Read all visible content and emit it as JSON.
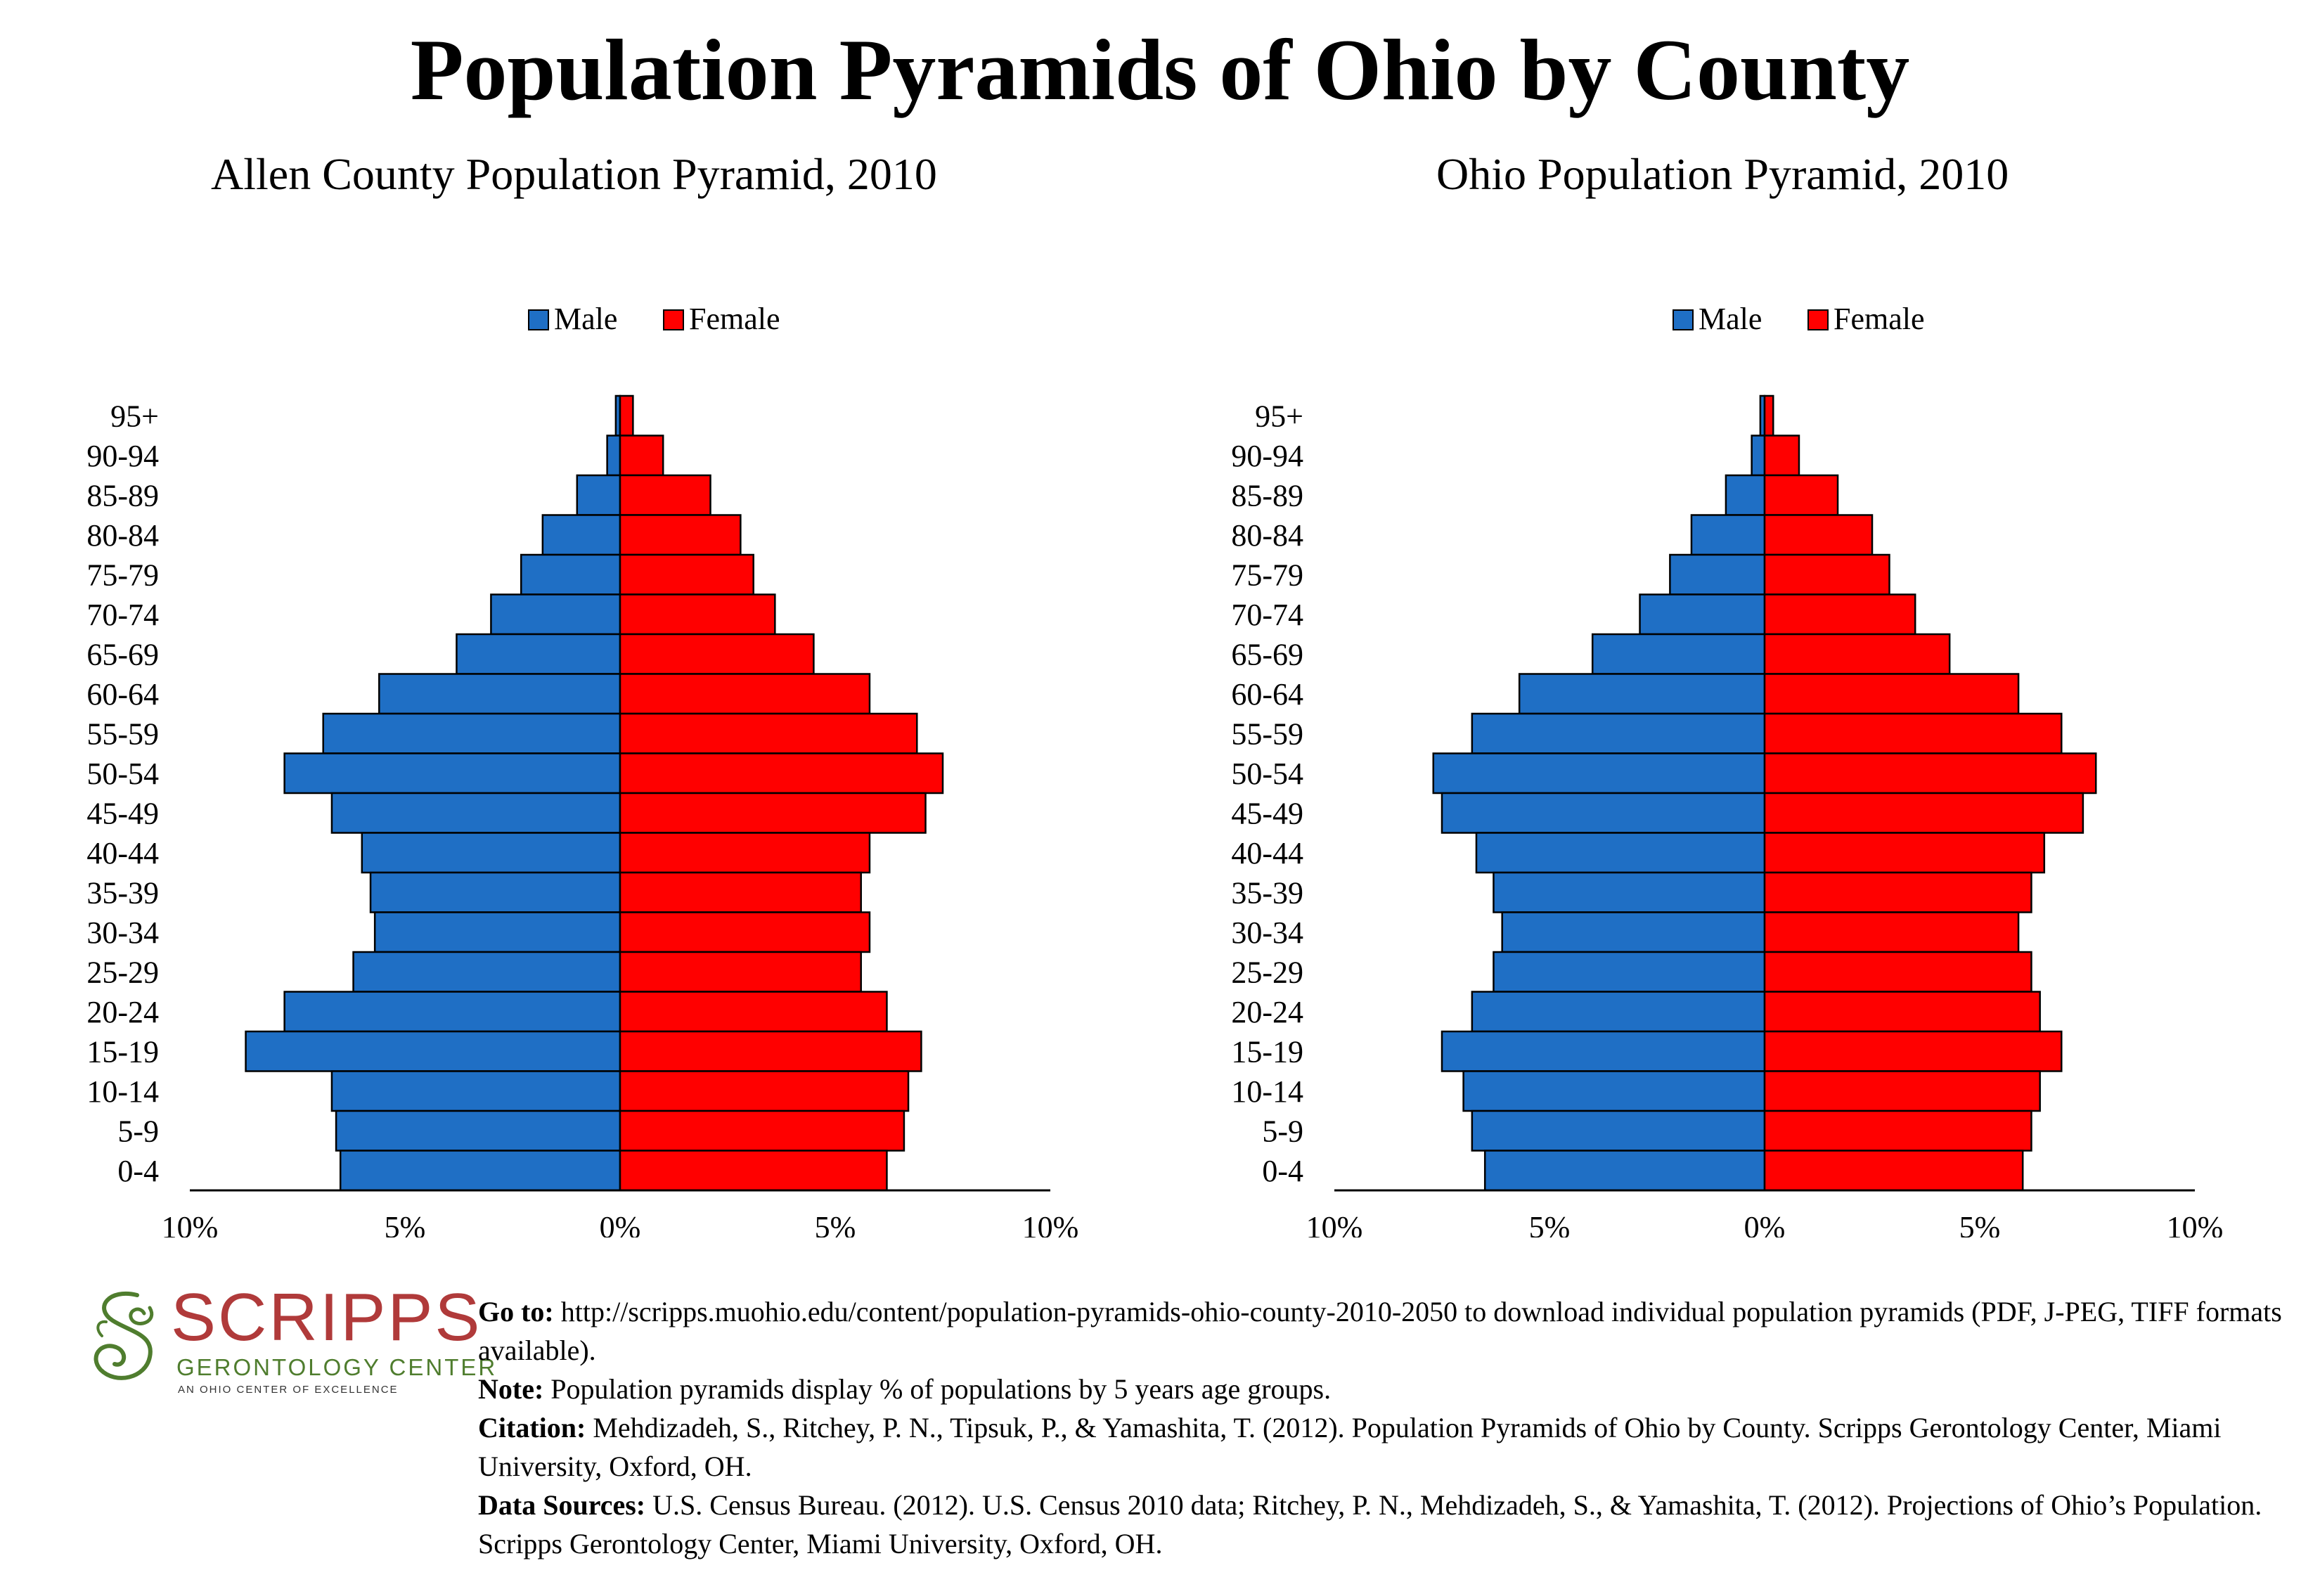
{
  "title": "Population Pyramids of Ohio by County",
  "colors": {
    "male": "#1f6fc5",
    "female": "#ff0000",
    "outline": "#000000",
    "logo_red": "#b03a3a",
    "logo_green": "#4f7d2e"
  },
  "chart_data": [
    {
      "type": "bar",
      "orientation": "horizontal-population-pyramid",
      "title": "Allen County Population Pyramid, 2010",
      "categories": [
        "95+",
        "90-94",
        "85-89",
        "80-84",
        "75-79",
        "70-74",
        "65-69",
        "60-64",
        "55-59",
        "50-54",
        "45-49",
        "40-44",
        "35-39",
        "30-34",
        "25-29",
        "20-24",
        "15-19",
        "10-14",
        "5-9",
        "0-4"
      ],
      "series": [
        {
          "name": "Male",
          "values": [
            0.1,
            0.3,
            1.0,
            1.8,
            2.3,
            3.0,
            3.8,
            5.6,
            6.9,
            7.8,
            6.7,
            6.0,
            5.8,
            5.7,
            6.2,
            7.8,
            8.7,
            6.7,
            6.6,
            6.5
          ]
        },
        {
          "name": "Female",
          "values": [
            0.3,
            1.0,
            2.1,
            2.8,
            3.1,
            3.6,
            4.5,
            5.8,
            6.9,
            7.5,
            7.1,
            5.8,
            5.6,
            5.8,
            5.6,
            6.2,
            7.0,
            6.7,
            6.6,
            6.2
          ]
        }
      ],
      "xlim": [
        -10,
        10
      ],
      "xticks": [
        "10%",
        "5%",
        "0%",
        "5%",
        "10%"
      ],
      "legend": "top-center",
      "grid": false
    },
    {
      "type": "bar",
      "orientation": "horizontal-population-pyramid",
      "title": "Ohio Population Pyramid, 2010",
      "categories": [
        "95+",
        "90-94",
        "85-89",
        "80-84",
        "75-79",
        "70-74",
        "65-69",
        "60-64",
        "55-59",
        "50-54",
        "45-49",
        "40-44",
        "35-39",
        "30-34",
        "25-29",
        "20-24",
        "15-19",
        "10-14",
        "5-9",
        "0-4"
      ],
      "series": [
        {
          "name": "Male",
          "values": [
            0.1,
            0.3,
            0.9,
            1.7,
            2.2,
            2.9,
            4.0,
            5.7,
            6.8,
            7.7,
            7.5,
            6.7,
            6.3,
            6.1,
            6.3,
            6.8,
            7.5,
            7.0,
            6.8,
            6.5
          ]
        },
        {
          "name": "Female",
          "values": [
            0.2,
            0.8,
            1.7,
            2.5,
            2.9,
            3.5,
            4.3,
            5.9,
            6.9,
            7.7,
            7.4,
            6.5,
            6.2,
            5.9,
            6.2,
            6.4,
            6.9,
            6.4,
            6.2,
            6.0
          ]
        }
      ],
      "xlim": [
        -10,
        10
      ],
      "xticks": [
        "10%",
        "5%",
        "0%",
        "5%",
        "10%"
      ],
      "legend": "top-center",
      "grid": false
    }
  ],
  "logo": {
    "name": "SCRIPPS",
    "subtitle": "GERONTOLOGY CENTER",
    "tagline": "AN OHIO CENTER OF EXCELLENCE"
  },
  "footer": {
    "goto_label": "Go to:",
    "goto_text": " http://scripps.muohio.edu/content/population-pyramids-ohio-county-2010-2050 to download individual population pyramids (PDF, J-PEG, TIFF formats available).",
    "note_label": "Note:",
    "note_text": " Population pyramids display % of populations by 5 years age groups.",
    "citation_label": "Citation:",
    "citation_text": " Mehdizadeh, S., Ritchey, P. N., Tipsuk, P., & Yamashita, T. (2012). Population Pyramids of Ohio by County. Scripps Gerontology Center, Miami University, Oxford, OH.",
    "sources_label": "Data Sources:",
    "sources_text": " U.S. Census Bureau. (2012). U.S. Census 2010 data; Ritchey, P. N., Mehdizadeh, S., & Yamashita, T. (2012). Projections of Ohio’s Population. Scripps Gerontology Center, Miami University, Oxford, OH."
  }
}
